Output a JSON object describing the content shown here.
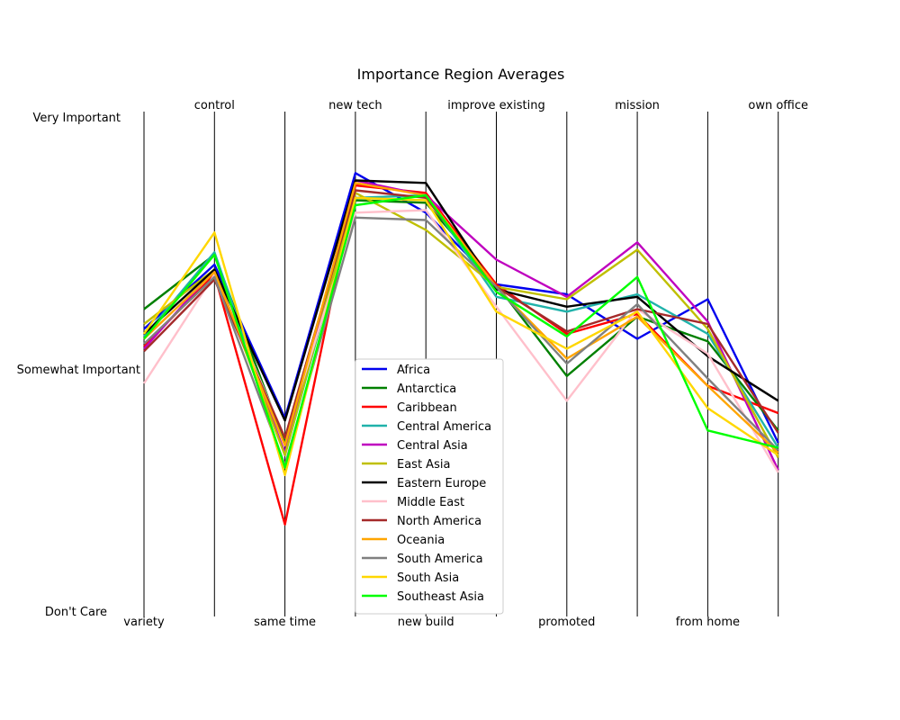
{
  "chart_data": {
    "type": "line",
    "subtype": "parallel-coordinates",
    "title": "Importance Region Averages",
    "axes": [
      "variety",
      "control",
      "same time",
      "new tech",
      "new build",
      "improve existing",
      "promoted",
      "mission",
      "from home",
      "own office"
    ],
    "level_labels": [
      "Don't Care",
      "Somewhat Important",
      "Very Important"
    ],
    "ylim": [
      0,
      2
    ],
    "legend_position": "center-bottom",
    "series": [
      {
        "name": "Africa",
        "color": "#0000ee",
        "values": [
          1.14,
          1.4,
          0.78,
          1.77,
          1.61,
          1.32,
          1.28,
          1.1,
          1.26,
          0.68
        ]
      },
      {
        "name": "Antarctica",
        "color": "#008000",
        "values": [
          1.22,
          1.44,
          0.68,
          1.66,
          1.65,
          1.32,
          0.95,
          1.19,
          1.09,
          0.73
        ]
      },
      {
        "name": "Caribbean",
        "color": "#ff0000",
        "values": [
          1.07,
          1.36,
          0.35,
          1.72,
          1.69,
          1.32,
          1.12,
          1.2,
          0.91,
          0.8
        ]
      },
      {
        "name": "Central America",
        "color": "#20b2aa",
        "values": [
          1.11,
          1.45,
          0.63,
          1.67,
          1.68,
          1.27,
          1.21,
          1.28,
          1.12,
          0.66
        ]
      },
      {
        "name": "Central Asia",
        "color": "#bf00bf",
        "values": [
          1.06,
          1.38,
          0.64,
          1.74,
          1.68,
          1.42,
          1.27,
          1.49,
          1.17,
          0.57
        ]
      },
      {
        "name": "East Asia",
        "color": "#bfbf00",
        "values": [
          1.16,
          1.38,
          0.63,
          1.69,
          1.54,
          1.31,
          1.26,
          1.46,
          1.14,
          0.62
        ]
      },
      {
        "name": "Eastern Europe",
        "color": "#000000",
        "values": [
          1.12,
          1.38,
          0.77,
          1.74,
          1.73,
          1.3,
          1.23,
          1.27,
          1.03,
          0.85
        ]
      },
      {
        "name": "Middle East",
        "color": "#ffc0cb",
        "values": [
          0.92,
          1.36,
          0.7,
          1.61,
          1.62,
          1.23,
          0.85,
          1.22,
          1.04,
          0.56
        ]
      },
      {
        "name": "North America",
        "color": "#a52a2a",
        "values": [
          1.05,
          1.34,
          0.7,
          1.7,
          1.67,
          1.31,
          1.13,
          1.22,
          1.16,
          0.72
        ]
      },
      {
        "name": "Oceania",
        "color": "#ffa500",
        "values": [
          1.1,
          1.37,
          0.67,
          1.73,
          1.68,
          1.31,
          1.02,
          1.19,
          0.91,
          0.64
        ]
      },
      {
        "name": "South America",
        "color": "#808080",
        "values": [
          1.08,
          1.35,
          0.59,
          1.59,
          1.58,
          1.31,
          1.0,
          1.24,
          0.94,
          0.65
        ]
      },
      {
        "name": "South Asia",
        "color": "#ffd700",
        "values": [
          1.12,
          1.53,
          0.55,
          1.67,
          1.66,
          1.21,
          1.06,
          1.21,
          0.82,
          0.63
        ]
      },
      {
        "name": "Southeast Asia",
        "color": "#00ff00",
        "values": [
          1.1,
          1.44,
          0.58,
          1.64,
          1.68,
          1.29,
          1.11,
          1.35,
          0.73,
          0.66
        ]
      }
    ]
  }
}
